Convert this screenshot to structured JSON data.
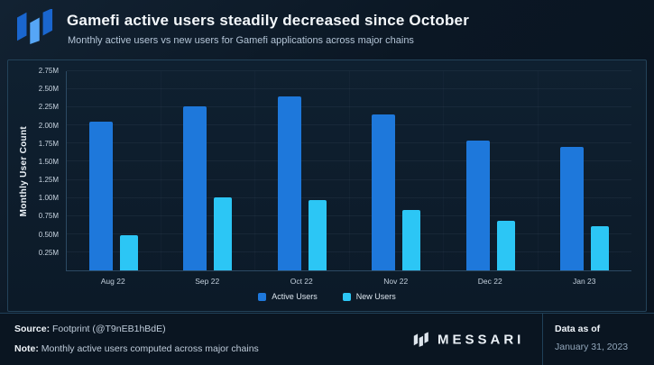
{
  "header": {
    "title": "Gamefi active users steadily decreased since October",
    "subtitle": "Monthly active users vs new users for Gamefi applications across major chains"
  },
  "chart_data": {
    "type": "bar",
    "title": "Gamefi active users steadily decreased since October",
    "subtitle": "Monthly active users vs new users for Gamefi applications across major chains",
    "xlabel": "",
    "ylabel": "Monthly User Count",
    "ylim": [
      0,
      2.75
    ],
    "grid": true,
    "legend_position": "bottom",
    "categories": [
      "Aug 22",
      "Sep 22",
      "Oct 22",
      "Nov 22",
      "Dec 22",
      "Jan 23"
    ],
    "series": [
      {
        "name": "Active Users",
        "color": "#1e78db",
        "values": [
          2.05,
          2.27,
          2.4,
          2.15,
          1.79,
          1.71
        ]
      },
      {
        "name": "New Users",
        "color": "#2cc6f5",
        "values": [
          0.48,
          1.01,
          0.97,
          0.84,
          0.69,
          0.61
        ]
      }
    ],
    "yticks": [
      {
        "value": 0.25,
        "label": "0.25M"
      },
      {
        "value": 0.5,
        "label": "0.50M"
      },
      {
        "value": 0.75,
        "label": "0.75M"
      },
      {
        "value": 1.0,
        "label": "1.00M"
      },
      {
        "value": 1.25,
        "label": "1.25M"
      },
      {
        "value": 1.5,
        "label": "1.50M"
      },
      {
        "value": 1.75,
        "label": "1.75M"
      },
      {
        "value": 2.0,
        "label": "2.00M"
      },
      {
        "value": 2.25,
        "label": "2.25M"
      },
      {
        "value": 2.5,
        "label": "2.50M"
      },
      {
        "value": 2.75,
        "label": "2.75M"
      }
    ]
  },
  "footer": {
    "source_label": "Source:",
    "source_text": " Footprint (@T9nEB1hBdE)",
    "note_label": "Note:",
    "note_text": " Monthly active users computed across major chains",
    "brand": "MESSARI",
    "data_as_of_label": "Data as of",
    "data_as_of_value": "January 31, 2023"
  },
  "colors": {
    "background": "#0b1724",
    "panel_border": "#234259",
    "active_users": "#1e78db",
    "new_users": "#2cc6f5",
    "title_text": "#f4f8fb",
    "muted_text": "#b4c5d7"
  }
}
